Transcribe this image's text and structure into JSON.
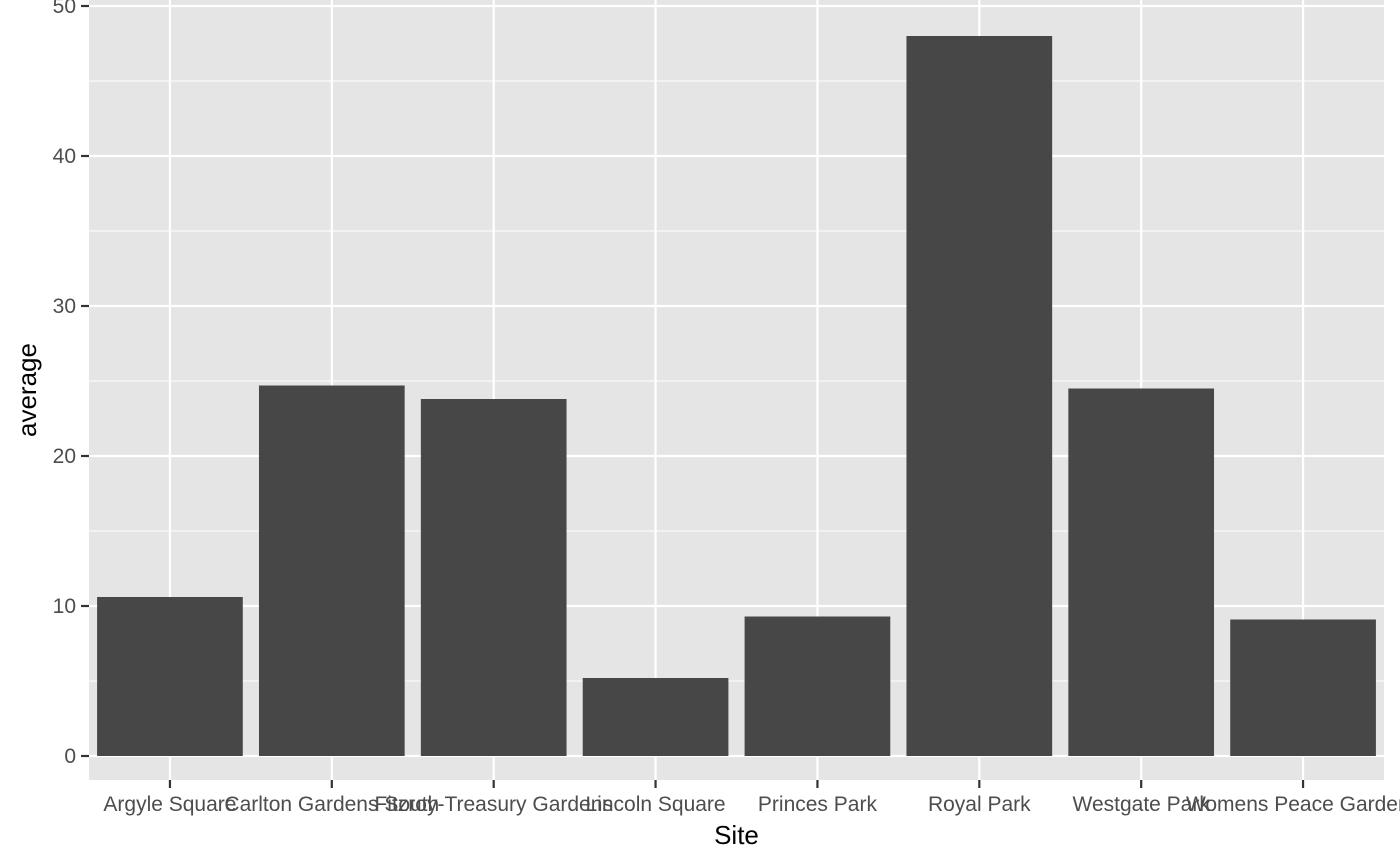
{
  "chart_data": {
    "type": "bar",
    "title": "",
    "xlabel": "Site",
    "ylabel": "average",
    "categories": [
      "Argyle Square",
      "Carlton Gardens South",
      "Fitzroy-Treasury Gardens",
      "Lincoln Square",
      "Princes Park",
      "Royal Park",
      "Westgate Park",
      "Womens Peace Gardens"
    ],
    "values": [
      10.6,
      24.7,
      23.8,
      5.2,
      9.3,
      48.0,
      24.5,
      9.1
    ],
    "ylim": [
      -1.6,
      50.4
    ],
    "yticks": [
      0,
      10,
      20,
      30,
      40,
      50
    ],
    "ytick_labels": [
      "0",
      "10",
      "20",
      "30",
      "40",
      "50"
    ],
    "grid": true,
    "legend": "none",
    "colors": {
      "panel": "#e5e5e5",
      "grid": "#ffffff",
      "bar": "#474747",
      "tick": "#333333",
      "tick_label": "#4d4d4d",
      "axis_title": "#000000"
    }
  }
}
